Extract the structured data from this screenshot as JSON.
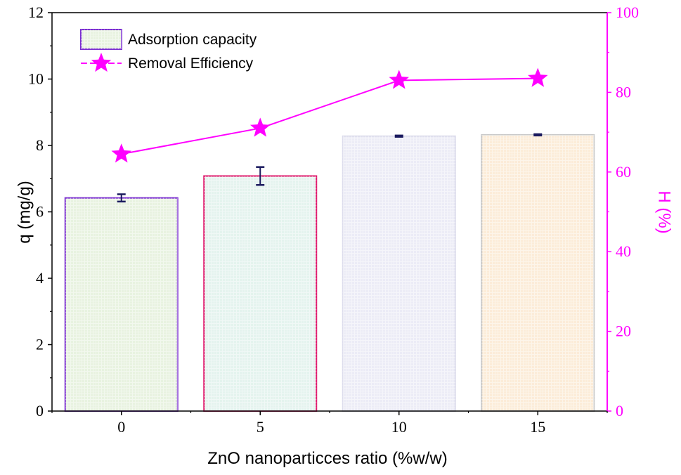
{
  "chart_data": {
    "type": "bar",
    "xlabel": "ZnO nanoparticces ratio (%w/w)",
    "categories": [
      "0",
      "5",
      "10",
      "15"
    ],
    "y_left": {
      "label": "q (mg/g)",
      "lim": [
        0,
        12
      ],
      "ticks": [
        "0",
        "2",
        "4",
        "6",
        "8",
        "10",
        "12"
      ]
    },
    "y_right": {
      "label": "H (%)",
      "lim": [
        0,
        100
      ],
      "ticks": [
        "0",
        "20",
        "40",
        "60",
        "80",
        "100"
      ],
      "color": "#ff00ff"
    },
    "series": [
      {
        "name": "Adsorption capacity",
        "kind": "bar",
        "axis": "left",
        "values": [
          6.42,
          7.08,
          8.28,
          8.32
        ],
        "error": [
          0.11,
          0.27,
          0.02,
          0.02
        ],
        "fill_colors": [
          "#e8f2e0",
          "#e4f3ee",
          "#ececf6",
          "#fcecd8"
        ],
        "edge_colors": [
          "#7b2fd0",
          "#e0176b",
          "#dcdcec",
          "#c8c8c8"
        ]
      },
      {
        "name": "Removal Efficiency",
        "kind": "line",
        "axis": "right",
        "marker": "star",
        "color": "#ff00ff",
        "values": [
          64.5,
          71,
          83,
          83.5
        ]
      }
    ],
    "legend_position": "top-left",
    "grid": false
  }
}
